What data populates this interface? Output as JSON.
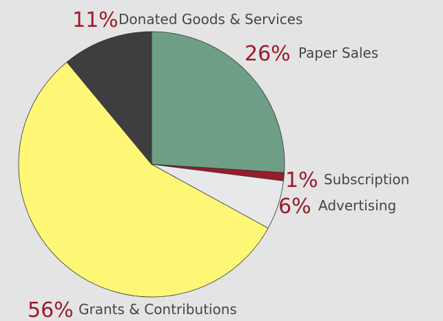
{
  "chart_data": {
    "type": "pie",
    "categories": [
      "Paper Sales",
      "Subscription",
      "Advertising",
      "Grants & Contributions",
      "Donated Goods & Services"
    ],
    "values": [
      26,
      1,
      6,
      56,
      11
    ],
    "value_labels": [
      "26%",
      "1%",
      "6%",
      "56%",
      "11%"
    ],
    "colors": [
      "#6f9e87",
      "#9b1b2a",
      "#e6e8ea",
      "#fff877",
      "#3e3e40"
    ]
  }
}
